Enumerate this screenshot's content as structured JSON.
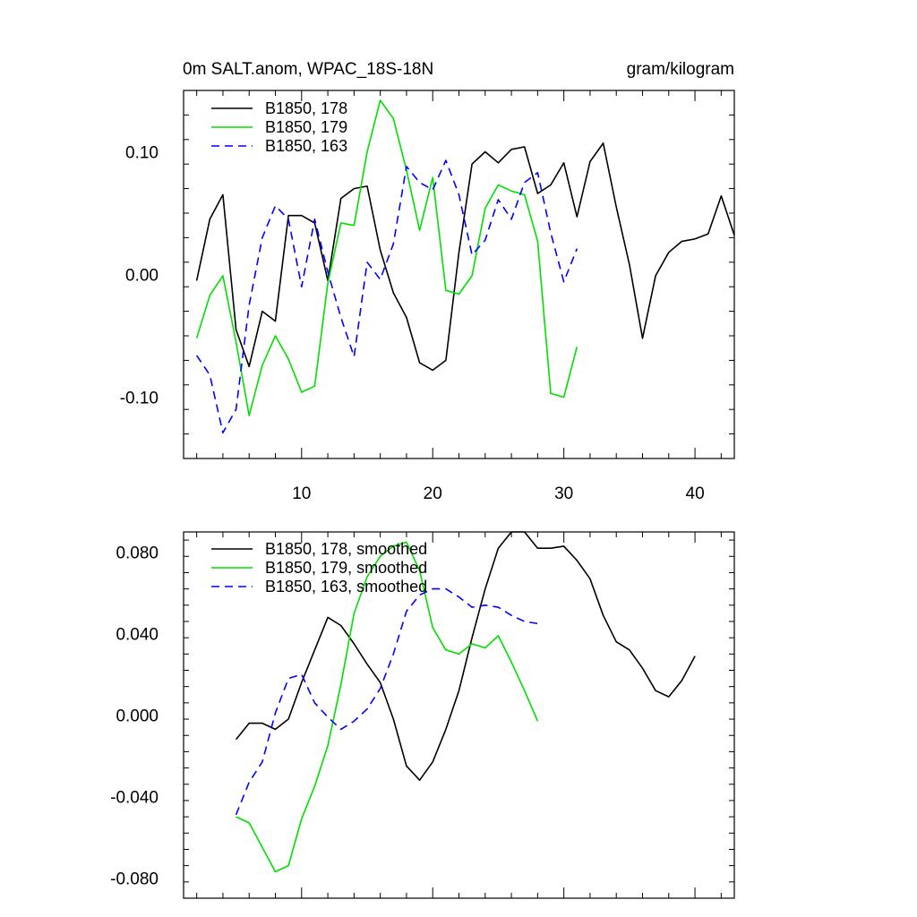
{
  "chart_data": [
    {
      "type": "line",
      "title": "0m SALT.anom, WPAC_18S-18N",
      "units": "gram/kilogram",
      "xlim": [
        1,
        43
      ],
      "ylim": [
        -0.15,
        0.15
      ],
      "xticks": [
        10,
        20,
        30,
        40
      ],
      "yticks": [
        -0.1,
        0.0,
        0.1
      ],
      "ytick_labels": [
        "-0.10",
        "0.00",
        "0.10"
      ],
      "series": [
        {
          "name": "B1850, 178",
          "color": "#000000",
          "dash": "solid",
          "x": [
            2,
            3,
            4,
            5,
            6,
            7,
            8,
            9,
            10,
            11,
            12,
            13,
            14,
            15,
            16,
            17,
            18,
            19,
            20,
            21,
            22,
            23,
            24,
            25,
            26,
            27,
            28,
            29,
            30,
            31,
            32,
            33,
            34,
            35,
            36,
            37,
            38,
            39,
            40,
            41,
            42,
            43
          ],
          "values": [
            -0.005,
            0.045,
            0.065,
            -0.045,
            -0.075,
            -0.03,
            -0.038,
            0.048,
            0.048,
            0.042,
            -0.005,
            0.062,
            0.07,
            0.072,
            0.02,
            -0.015,
            -0.035,
            -0.072,
            -0.078,
            -0.07,
            0.018,
            0.09,
            0.1,
            0.091,
            0.102,
            0.104,
            0.066,
            0.073,
            0.091,
            0.047,
            0.092,
            0.107,
            0.055,
            0.008,
            -0.052,
            -0.001,
            0.018,
            0.027,
            0.029,
            0.033,
            0.064,
            0.032
          ]
        },
        {
          "name": "B1850, 179",
          "color": "#00e000",
          "dash": "solid",
          "x": [
            2,
            3,
            4,
            5,
            6,
            7,
            8,
            9,
            10,
            11,
            12,
            13,
            14,
            15,
            16,
            17,
            18,
            19,
            20,
            21,
            22,
            23,
            24,
            25,
            26,
            27,
            28,
            29,
            30,
            31
          ],
          "values": [
            -0.052,
            -0.017,
            -0.001,
            -0.055,
            -0.115,
            -0.074,
            -0.05,
            -0.069,
            -0.096,
            -0.091,
            -0.007,
            0.042,
            0.04,
            0.1,
            0.142,
            0.127,
            0.085,
            0.036,
            0.079,
            -0.013,
            -0.016,
            -0.001,
            0.054,
            0.073,
            0.068,
            0.065,
            0.027,
            -0.097,
            -0.1,
            -0.059
          ]
        },
        {
          "name": "B1850, 163",
          "color": "#0000ff",
          "dash": "dashed",
          "x": [
            2,
            3,
            4,
            5,
            6,
            7,
            8,
            9,
            10,
            11,
            12,
            13,
            14,
            15,
            16,
            17,
            18,
            19,
            20,
            21,
            22,
            23,
            24,
            25,
            26,
            27,
            28,
            29,
            30,
            31
          ],
          "values": [
            -0.066,
            -0.082,
            -0.129,
            -0.11,
            -0.025,
            0.03,
            0.056,
            0.045,
            -0.01,
            0.045,
            0.002,
            -0.035,
            -0.067,
            0.01,
            -0.004,
            0.025,
            0.088,
            0.075,
            0.069,
            0.093,
            0.065,
            0.016,
            0.028,
            0.061,
            0.045,
            0.075,
            0.083,
            0.034,
            -0.006,
            0.021
          ]
        }
      ]
    },
    {
      "type": "line",
      "xlim": [
        1,
        43
      ],
      "ylim": [
        -0.09,
        0.09
      ],
      "xticks": [
        10,
        20,
        30,
        40
      ],
      "yticks": [
        -0.08,
        -0.04,
        0.0,
        0.04,
        0.08
      ],
      "ytick_labels": [
        "-0.080",
        "-0.040",
        "0.000",
        "0.040",
        "0.080"
      ],
      "series": [
        {
          "name": "B1850, 178, smoothed",
          "color": "#000000",
          "dash": "solid",
          "x": [
            5,
            6,
            7,
            8,
            9,
            10,
            11,
            12,
            13,
            14,
            15,
            16,
            17,
            18,
            19,
            20,
            21,
            22,
            23,
            24,
            25,
            26,
            27,
            28,
            29,
            30,
            31,
            32,
            33,
            34,
            35,
            36,
            37,
            38,
            39,
            40
          ],
          "values": [
            -0.012,
            -0.004,
            -0.004,
            -0.007,
            -0.002,
            0.016,
            0.032,
            0.048,
            0.044,
            0.035,
            0.025,
            0.016,
            -0.002,
            -0.025,
            -0.032,
            -0.023,
            -0.007,
            0.012,
            0.038,
            0.062,
            0.082,
            0.09,
            0.09,
            0.082,
            0.082,
            0.083,
            0.076,
            0.067,
            0.049,
            0.036,
            0.032,
            0.023,
            0.012,
            0.009,
            0.017,
            0.029
          ]
        },
        {
          "name": "B1850, 179, smoothed",
          "color": "#00e000",
          "dash": "solid",
          "x": [
            5,
            6,
            7,
            8,
            9,
            10,
            11,
            12,
            13,
            14,
            15,
            16,
            17,
            18,
            19,
            20,
            21,
            22,
            23,
            24,
            25,
            26,
            27,
            28
          ],
          "values": [
            -0.05,
            -0.053,
            -0.065,
            -0.077,
            -0.074,
            -0.051,
            -0.035,
            -0.015,
            0.015,
            0.05,
            0.068,
            0.078,
            0.083,
            0.085,
            0.071,
            0.043,
            0.032,
            0.03,
            0.035,
            0.033,
            0.039,
            0.026,
            0.012,
            -0.003
          ]
        },
        {
          "name": "B1850, 163, smoothed",
          "color": "#0000ff",
          "dash": "dashed",
          "x": [
            5,
            6,
            7,
            8,
            9,
            10,
            11,
            12,
            13,
            14,
            15,
            16,
            17,
            18,
            19,
            20,
            21,
            22,
            23,
            24,
            25,
            26,
            27,
            28
          ],
          "values": [
            -0.049,
            -0.033,
            -0.023,
            0.001,
            0.018,
            0.02,
            0.006,
            -0.001,
            -0.007,
            -0.003,
            0.003,
            0.013,
            0.03,
            0.051,
            0.059,
            0.062,
            0.062,
            0.058,
            0.053,
            0.054,
            0.053,
            0.049,
            0.046,
            0.045
          ]
        }
      ]
    }
  ]
}
